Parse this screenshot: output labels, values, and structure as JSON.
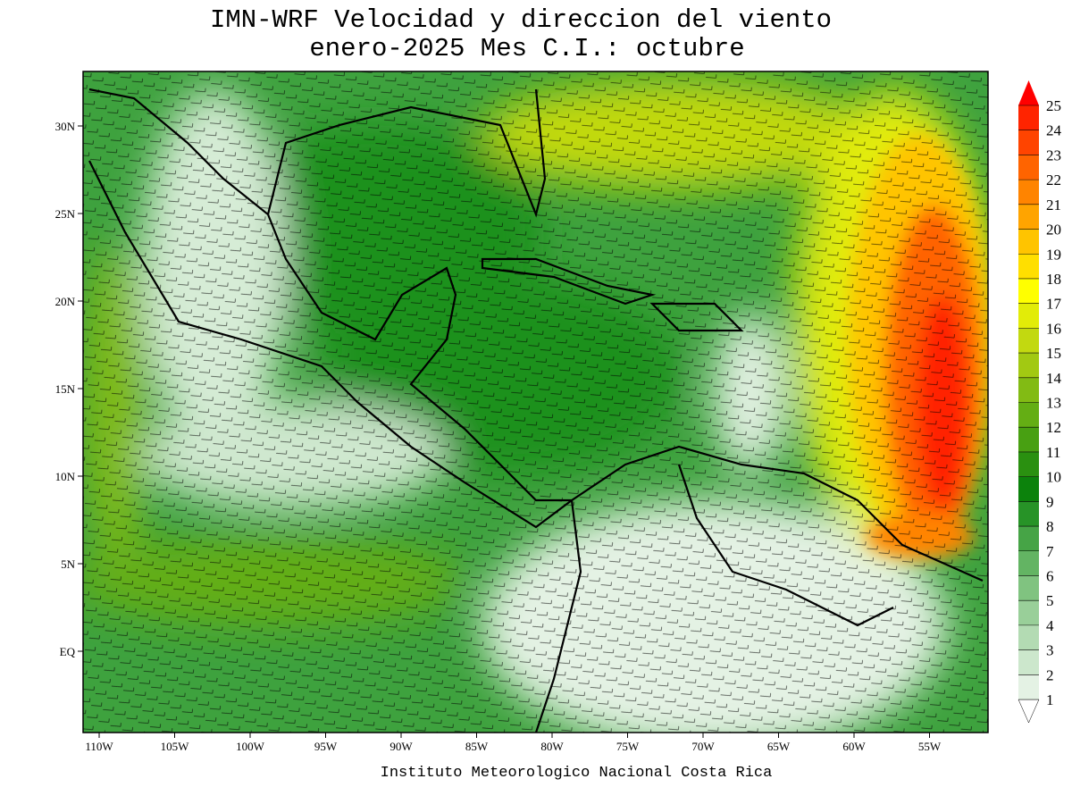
{
  "title": [
    "IMN-WRF Velocidad y direccion del viento",
    "enero-2025 Mes C.I.: octubre"
  ],
  "map": {
    "lon_labels": [
      "110W",
      "105W",
      "100W",
      "95W",
      "90W",
      "85W",
      "80W",
      "75W",
      "70W",
      "65W",
      "60W",
      "55W"
    ],
    "lat_labels": [
      "30N",
      "25N",
      "20N",
      "15N",
      "10N",
      "5N",
      "EQ"
    ]
  },
  "colorbar": {
    "levels": [
      1,
      2,
      3,
      4,
      5,
      6,
      7,
      8,
      9,
      10,
      11,
      12,
      13,
      14,
      15,
      16,
      17,
      18,
      19,
      20,
      21,
      22,
      23,
      24,
      25
    ],
    "colors": [
      "#ffffff",
      "#e4f2e4",
      "#cce7cc",
      "#b3dbb3",
      "#99cf99",
      "#80c380",
      "#63b463",
      "#46a446",
      "#279327",
      "#0c820c",
      "#2a9010",
      "#48a012",
      "#64ae14",
      "#82bb14",
      "#a2c912",
      "#c2d910",
      "#e2ec08",
      "#ffff00",
      "#ffdf00",
      "#ffc400",
      "#ffa400",
      "#ff8400",
      "#ff6400",
      "#ff4400",
      "#ff2400",
      "#ff0000"
    ]
  },
  "footer": "Instituto Meteorologico Nacional Costa Rica"
}
